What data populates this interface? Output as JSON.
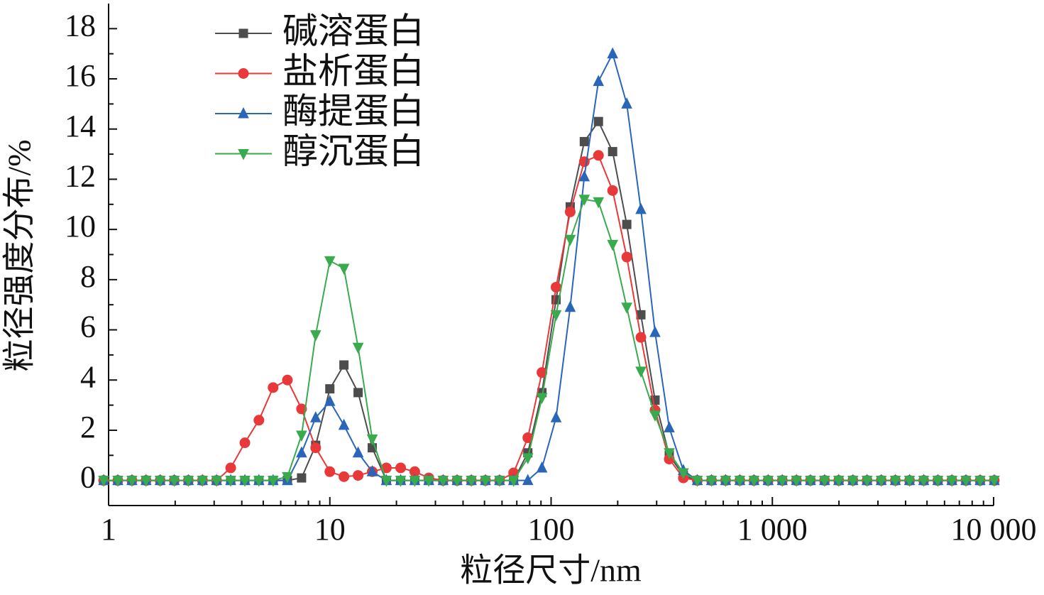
{
  "chart_data": {
    "type": "line",
    "xlabel": "粒径尺寸/nm",
    "ylabel": "粒径强度分布/%",
    "xscale": "log",
    "legend": "upper left",
    "x": [
      0.95,
      1.101,
      1.275,
      1.477,
      1.71,
      1.981,
      2.294,
      2.657,
      3.077,
      3.564,
      4.13,
      4.78,
      5.54,
      6.43,
      7.45,
      8.63,
      10.0,
      11.58,
      13.42,
      15.55,
      18.01,
      20.9,
      24.2,
      28.0,
      32.5,
      37.6,
      43.6,
      50.5,
      58.5,
      67.7,
      78.5,
      90.9,
      105.3,
      122.0,
      141.3,
      163.7,
      189.7,
      219.8,
      254.6,
      295,
      342,
      396,
      458,
      531,
      615,
      713,
      826,
      957,
      1109,
      1285,
      1487,
      1722,
      1995,
      2312,
      2680,
      3105,
      3597,
      4169,
      4831,
      5598,
      6479,
      7499,
      8690,
      10070
    ],
    "series": [
      {
        "name": "碱溶蛋白",
        "color": "#4d4d4d",
        "marker": "square",
        "values": [
          0,
          0,
          0,
          0,
          0,
          0,
          0,
          0,
          0,
          0,
          0,
          0,
          0,
          0,
          0.1,
          1.4,
          3.65,
          4.6,
          3.5,
          1.3,
          0,
          0,
          0,
          0,
          0,
          0,
          0,
          0,
          0,
          0,
          1.1,
          3.5,
          7.2,
          10.9,
          13.5,
          14.3,
          13.1,
          10.2,
          6.6,
          3.2,
          1.0,
          0.2,
          0,
          0,
          0,
          0,
          0,
          0,
          0,
          0,
          0,
          0,
          0,
          0,
          0,
          0,
          0,
          0,
          0,
          0,
          0,
          0,
          0,
          0
        ]
      },
      {
        "name": "盐析蛋白",
        "color": "#e8393a",
        "marker": "circle",
        "values": [
          0,
          0,
          0,
          0,
          0,
          0,
          0,
          0,
          0,
          0.5,
          1.5,
          2.4,
          3.7,
          4.0,
          2.85,
          1.3,
          0.35,
          0.15,
          0.2,
          0.35,
          0.5,
          0.5,
          0.35,
          0.1,
          0,
          0,
          0,
          0,
          0,
          0.3,
          1.7,
          4.3,
          7.7,
          10.7,
          12.7,
          12.95,
          11.55,
          8.9,
          5.7,
          2.8,
          0.85,
          0.1,
          0,
          0,
          0,
          0,
          0,
          0,
          0,
          0,
          0,
          0,
          0,
          0,
          0,
          0,
          0,
          0,
          0,
          0,
          0,
          0,
          0,
          0
        ]
      },
      {
        "name": "酶提蛋白",
        "color": "#2a66b8",
        "marker": "triangle-up",
        "values": [
          0,
          0,
          0,
          0,
          0,
          0,
          0,
          0,
          0,
          0,
          0,
          0,
          0,
          0,
          1.1,
          2.5,
          3.15,
          2.2,
          1.1,
          0.35,
          0,
          0,
          0,
          0,
          0,
          0,
          0,
          0,
          0,
          0,
          0,
          0.5,
          2.5,
          6.9,
          12.1,
          15.9,
          17.0,
          15.0,
          10.8,
          5.9,
          2.1,
          0.4,
          0,
          0,
          0,
          0,
          0,
          0,
          0,
          0,
          0,
          0,
          0,
          0,
          0,
          0,
          0,
          0,
          0,
          0,
          0,
          0,
          0,
          0
        ]
      },
      {
        "name": "醇沉蛋白",
        "color": "#3aaa4e",
        "marker": "triangle-down",
        "values": [
          0,
          0,
          0,
          0,
          0,
          0,
          0,
          0,
          0,
          0,
          0,
          0,
          0,
          0.15,
          1.8,
          5.8,
          8.75,
          8.45,
          5.3,
          1.65,
          0,
          0,
          0,
          0,
          0,
          0,
          0,
          0,
          0,
          0,
          0.9,
          3.3,
          6.6,
          9.6,
          11.2,
          11.1,
          9.4,
          6.9,
          4.35,
          2.6,
          1.1,
          0.3,
          0,
          0,
          0,
          0,
          0,
          0,
          0,
          0,
          0,
          0,
          0,
          0,
          0,
          0,
          0,
          0,
          0,
          0,
          0,
          0,
          0,
          0
        ]
      }
    ],
    "xlim": [
      1,
      10000
    ],
    "xticks": [
      1,
      10,
      100,
      {
        "value": 1000,
        "label": "1 000"
      },
      {
        "value": 10000,
        "label": "10 000"
      }
    ],
    "ylim": [
      -1,
      19
    ],
    "yticks": [
      0,
      2,
      4,
      6,
      8,
      10,
      12,
      14,
      16,
      18
    ]
  }
}
